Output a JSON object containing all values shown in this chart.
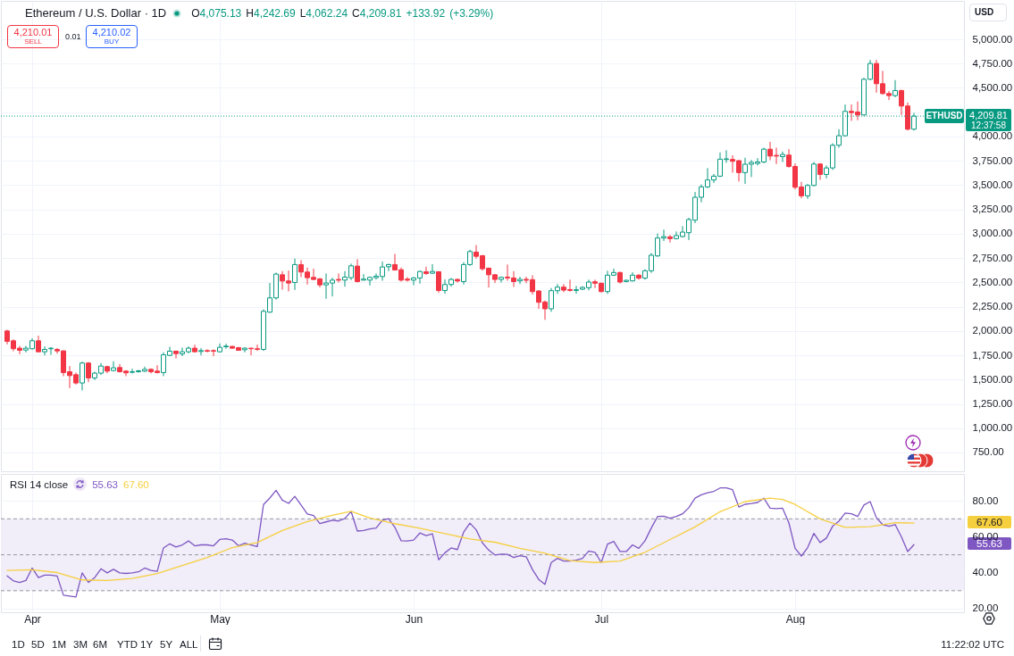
{
  "chart_data": [
    {
      "type": "candlestick",
      "title": "Ethereum / U.S. Dollar · 1D",
      "subtitle": "O4,075.13 H4,242.69 L4,062.24 C4,209.81 +133.92 (+3.29%)",
      "x": [
        "--03-28",
        "--03-29",
        "--03-30",
        "--03-31",
        "--04-01",
        "--04-02",
        "--04-03",
        "--04-04",
        "--04-05",
        "--04-06",
        "--04-07",
        "--04-08",
        "--04-09",
        "--04-10",
        "--04-11",
        "--04-12",
        "--04-13",
        "--04-14",
        "--04-15",
        "--04-16",
        "--04-17",
        "--04-18",
        "--04-19",
        "--04-20",
        "--04-21",
        "--04-22",
        "--04-23",
        "--04-24",
        "--04-25",
        "--04-26",
        "--04-27",
        "--04-28",
        "--04-29",
        "--04-30",
        "--05-01",
        "--05-02",
        "--05-03",
        "--05-04",
        "--05-05",
        "--05-06",
        "--05-07",
        "--05-08",
        "--05-09",
        "--05-10",
        "--05-11",
        "--05-12",
        "--05-13",
        "--05-14",
        "--05-15",
        "--05-16",
        "--05-17",
        "--05-18",
        "--05-19",
        "--05-20",
        "--05-21",
        "--05-22",
        "--05-23",
        "--05-24",
        "--05-25",
        "--05-26",
        "--05-27",
        "--05-28",
        "--05-29",
        "--05-30",
        "--05-31",
        "--06-01",
        "--06-02",
        "--06-03",
        "--06-04",
        "--06-05",
        "--06-06",
        "--06-07",
        "--06-08",
        "--06-09",
        "--06-10",
        "--06-11",
        "--06-12",
        "--06-13",
        "--06-14",
        "--06-15",
        "--06-16",
        "--06-17",
        "--06-18",
        "--06-19",
        "--06-20",
        "--06-21",
        "--06-22",
        "--06-23",
        "--06-24",
        "--06-25",
        "--06-26",
        "--06-27",
        "--06-28",
        "--06-29",
        "--06-30",
        "--07-01",
        "--07-02",
        "--07-03",
        "--07-04",
        "--07-05",
        "--07-06",
        "--07-07",
        "--07-08",
        "--07-09",
        "--07-10",
        "--07-11",
        "--07-12",
        "--07-13",
        "--07-14",
        "--07-15",
        "--07-16",
        "--07-17",
        "--07-18",
        "--07-19",
        "--07-20",
        "--07-21",
        "--07-22",
        "--07-23",
        "--07-24",
        "--07-25",
        "--07-26",
        "--07-27",
        "--07-28",
        "--07-29",
        "--07-30",
        "--07-31",
        "--08-01",
        "--08-02",
        "--08-03",
        "--08-04",
        "--08-05",
        "--08-06",
        "--08-07",
        "--08-08",
        "--08-09",
        "--08-10",
        "--08-11",
        "--08-12",
        "--08-13",
        "--08-14",
        "--08-15",
        "--08-16",
        "--08-17",
        "--08-18",
        "--08-19",
        "--08-20"
      ],
      "ohlc": [
        [
          2000,
          2012,
          1862,
          1893
        ],
        [
          1899,
          1914,
          1792,
          1817
        ],
        [
          1823,
          1847,
          1761,
          1801
        ],
        [
          1804,
          1847,
          1780,
          1823
        ],
        [
          1817,
          1924,
          1810,
          1899
        ],
        [
          1899,
          1951,
          1780,
          1786
        ],
        [
          1786,
          1841,
          1749,
          1810
        ],
        [
          1817,
          1832,
          1755,
          1823
        ],
        [
          1810,
          1823,
          1767,
          1795
        ],
        [
          1795,
          1801,
          1535,
          1572
        ],
        [
          1581,
          1639,
          1412,
          1541
        ],
        [
          1550,
          1572,
          1449,
          1465
        ],
        [
          1465,
          1685,
          1388,
          1670
        ],
        [
          1670,
          1679,
          1474,
          1517
        ],
        [
          1517,
          1581,
          1495,
          1566
        ],
        [
          1566,
          1670,
          1547,
          1639
        ],
        [
          1633,
          1642,
          1566,
          1587
        ],
        [
          1593,
          1688,
          1584,
          1621
        ],
        [
          1624,
          1660,
          1572,
          1581
        ],
        [
          1587,
          1596,
          1535,
          1569
        ],
        [
          1575,
          1611,
          1563,
          1581
        ],
        [
          1581,
          1599,
          1572,
          1590
        ],
        [
          1587,
          1633,
          1578,
          1605
        ],
        [
          1605,
          1615,
          1563,
          1581
        ],
        [
          1587,
          1648,
          1563,
          1572
        ],
        [
          1572,
          1780,
          1535,
          1755
        ],
        [
          1749,
          1838,
          1740,
          1792
        ],
        [
          1792,
          1798,
          1718,
          1767
        ],
        [
          1764,
          1829,
          1740,
          1786
        ],
        [
          1786,
          1841,
          1770,
          1823
        ],
        [
          1823,
          1859,
          1780,
          1786
        ],
        [
          1789,
          1823,
          1749,
          1798
        ],
        [
          1798,
          1810,
          1780,
          1792
        ],
        [
          1798,
          1810,
          1740,
          1792
        ],
        [
          1786,
          1871,
          1780,
          1832
        ],
        [
          1838,
          1868,
          1817,
          1844
        ],
        [
          1841,
          1847,
          1817,
          1823
        ],
        [
          1829,
          1835,
          1798,
          1801
        ],
        [
          1807,
          1832,
          1780,
          1823
        ],
        [
          1823,
          1826,
          1749,
          1817
        ],
        [
          1817,
          1859,
          1795,
          1810
        ],
        [
          1810,
          2223,
          1795,
          2202
        ],
        [
          2193,
          2493,
          2187,
          2340
        ],
        [
          2340,
          2600,
          2322,
          2585
        ],
        [
          2578,
          2615,
          2425,
          2514
        ],
        [
          2514,
          2621,
          2407,
          2493
        ],
        [
          2499,
          2744,
          2422,
          2683
        ],
        [
          2683,
          2728,
          2554,
          2606
        ],
        [
          2606,
          2652,
          2478,
          2548
        ],
        [
          2551,
          2640,
          2523,
          2530
        ],
        [
          2536,
          2545,
          2447,
          2474
        ],
        [
          2474,
          2591,
          2331,
          2493
        ],
        [
          2493,
          2548,
          2355,
          2523
        ],
        [
          2530,
          2591,
          2499,
          2523
        ],
        [
          2523,
          2615,
          2456,
          2554
        ],
        [
          2548,
          2692,
          2523,
          2670
        ],
        [
          2667,
          2738,
          2499,
          2508
        ],
        [
          2523,
          2585,
          2520,
          2533
        ],
        [
          2523,
          2560,
          2468,
          2551
        ],
        [
          2548,
          2591,
          2530,
          2563
        ],
        [
          2560,
          2713,
          2517,
          2658
        ],
        [
          2661,
          2692,
          2615,
          2683
        ],
        [
          2683,
          2793,
          2621,
          2627
        ],
        [
          2630,
          2652,
          2508,
          2523
        ],
        [
          2533,
          2554,
          2508,
          2523
        ],
        [
          2523,
          2554,
          2471,
          2545
        ],
        [
          2545,
          2621,
          2487,
          2612
        ],
        [
          2609,
          2661,
          2578,
          2591
        ],
        [
          2594,
          2686,
          2585,
          2612
        ],
        [
          2609,
          2615,
          2392,
          2416
        ],
        [
          2416,
          2530,
          2383,
          2478
        ],
        [
          2478,
          2545,
          2456,
          2530
        ],
        [
          2530,
          2539,
          2499,
          2514
        ],
        [
          2508,
          2707,
          2478,
          2683
        ],
        [
          2683,
          2835,
          2670,
          2817
        ],
        [
          2811,
          2884,
          2744,
          2768
        ],
        [
          2774,
          2783,
          2621,
          2640
        ],
        [
          2646,
          2652,
          2447,
          2578
        ],
        [
          2578,
          2585,
          2493,
          2530
        ],
        [
          2530,
          2560,
          2499,
          2551
        ],
        [
          2554,
          2683,
          2517,
          2545
        ],
        [
          2545,
          2615,
          2453,
          2508
        ],
        [
          2515,
          2558,
          2482,
          2531
        ],
        [
          2531,
          2558,
          2491,
          2522
        ],
        [
          2528,
          2573,
          2375,
          2405
        ],
        [
          2411,
          2420,
          2228,
          2295
        ],
        [
          2298,
          2313,
          2115,
          2228
        ],
        [
          2228,
          2442,
          2197,
          2414
        ],
        [
          2414,
          2482,
          2381,
          2451
        ],
        [
          2451,
          2482,
          2399,
          2420
        ],
        [
          2426,
          2528,
          2405,
          2417
        ],
        [
          2417,
          2463,
          2384,
          2424
        ],
        [
          2430,
          2460,
          2421,
          2448
        ],
        [
          2445,
          2528,
          2417,
          2503
        ],
        [
          2506,
          2528,
          2442,
          2491
        ],
        [
          2491,
          2497,
          2396,
          2405
        ],
        [
          2405,
          2619,
          2381,
          2574
        ],
        [
          2574,
          2641,
          2565,
          2601
        ],
        [
          2601,
          2610,
          2488,
          2503
        ],
        [
          2509,
          2527,
          2500,
          2521
        ],
        [
          2515,
          2604,
          2509,
          2574
        ],
        [
          2574,
          2583,
          2528,
          2543
        ],
        [
          2543,
          2635,
          2528,
          2619
        ],
        [
          2619,
          2803,
          2598,
          2779
        ],
        [
          2772,
          3002,
          2763,
          2956
        ],
        [
          2956,
          3042,
          2925,
          2971
        ],
        [
          2968,
          2987,
          2910,
          2950
        ],
        [
          2950,
          3023,
          2941,
          2981
        ],
        [
          2971,
          3078,
          2962,
          3017
        ],
        [
          3011,
          3164,
          2935,
          3146
        ],
        [
          3140,
          3430,
          3109,
          3375
        ],
        [
          3375,
          3507,
          3323,
          3482
        ],
        [
          3482,
          3675,
          3470,
          3553
        ],
        [
          3553,
          3614,
          3522,
          3592
        ],
        [
          3592,
          3837,
          3583,
          3767
        ],
        [
          3764,
          3859,
          3730,
          3770
        ],
        [
          3764,
          3807,
          3629,
          3745
        ],
        [
          3752,
          3758,
          3537,
          3629
        ],
        [
          3629,
          3782,
          3513,
          3715
        ],
        [
          3715,
          3758,
          3583,
          3733
        ],
        [
          3723,
          3778,
          3702,
          3738
        ],
        [
          3738,
          3885,
          3726,
          3870
        ],
        [
          3870,
          3946,
          3757,
          3799
        ],
        [
          3806,
          3885,
          3717,
          3799
        ],
        [
          3793,
          3845,
          3738,
          3815
        ],
        [
          3809,
          3870,
          3680,
          3692
        ],
        [
          3692,
          3723,
          3457,
          3478
        ],
        [
          3481,
          3533,
          3365,
          3390
        ],
        [
          3390,
          3512,
          3359,
          3497
        ],
        [
          3497,
          3738,
          3487,
          3717
        ],
        [
          3717,
          3726,
          3555,
          3610
        ],
        [
          3610,
          3702,
          3570,
          3677
        ],
        [
          3677,
          3931,
          3656,
          3910
        ],
        [
          3910,
          4075,
          3885,
          4008
        ],
        [
          4008,
          4329,
          4002,
          4259
        ],
        [
          4259,
          4329,
          4161,
          4246
        ],
        [
          4252,
          4360,
          4167,
          4222
        ],
        [
          4222,
          4604,
          4216,
          4589
        ],
        [
          4589,
          4788,
          4580,
          4751
        ],
        [
          4751,
          4788,
          4451,
          4543
        ],
        [
          4543,
          4675,
          4430,
          4442
        ],
        [
          4442,
          4467,
          4375,
          4421
        ],
        [
          4421,
          4580,
          4405,
          4473
        ],
        [
          4473,
          4482,
          4222,
          4314
        ],
        [
          4314,
          4350,
          4063,
          4075
        ],
        [
          4075.13,
          4242.69,
          4062.24,
          4209.81
        ]
      ],
      "xlim": [
        "--03-27",
        "--08-28"
      ],
      "xticks": [
        {
          "value": "--04-01",
          "label": null
        },
        {
          "value": "--05-01",
          "label": null
        },
        {
          "value": "--06-01",
          "label": null
        },
        {
          "value": "--07-01",
          "label": null
        },
        {
          "value": "--08-01",
          "label": null
        }
      ],
      "ylim": [
        557,
        5395
      ],
      "yticks": [
        {
          "value": 750,
          "label": "750.00"
        },
        {
          "value": 1000,
          "label": "1,000.00"
        },
        {
          "value": 1250,
          "label": "1,250.00"
        },
        {
          "value": 1500,
          "label": "1,500.00"
        },
        {
          "value": 1750,
          "label": "1,750.00"
        },
        {
          "value": 2000,
          "label": "2,000.00"
        },
        {
          "value": 2250,
          "label": "2,250.00"
        },
        {
          "value": 2500,
          "label": "2,500.00"
        },
        {
          "value": 2750,
          "label": "2,750.00"
        },
        {
          "value": 3000,
          "label": "3,000.00"
        },
        {
          "value": 3250,
          "label": "3,250.00"
        },
        {
          "value": 3500,
          "label": "3,500.00"
        },
        {
          "value": 3750,
          "label": "3,750.00"
        },
        {
          "value": 4000,
          "label": "4,000.00"
        },
        {
          "value": 4250,
          "label": null
        },
        {
          "value": 4500,
          "label": "4,500.00"
        },
        {
          "value": 4750,
          "label": "4,750.00"
        },
        {
          "value": 5000,
          "label": "5,000.00"
        }
      ],
      "grid": true,
      "tick_labels": "y",
      "ref_lines": [
        {
          "axis": "y",
          "value": 4209.81,
          "label": "ETHUSD",
          "color": "#089981",
          "line_style": "dotted"
        }
      ],
      "annotations": [
        "4,210.01",
        "SELL",
        "0.01",
        "4,210.02",
        "BUY",
        "USD",
        "4,209.81",
        "12:37:58"
      ]
    },
    {
      "type": "line",
      "title": "RSI 14 close",
      "x": [
        "--03-28",
        "--03-29",
        "--03-30",
        "--03-31",
        "--04-01",
        "--04-02",
        "--04-03",
        "--04-04",
        "--04-05",
        "--04-06",
        "--04-07",
        "--04-08",
        "--04-09",
        "--04-10",
        "--04-11",
        "--04-12",
        "--04-13",
        "--04-14",
        "--04-15",
        "--04-16",
        "--04-17",
        "--04-18",
        "--04-19",
        "--04-20",
        "--04-21",
        "--04-22",
        "--04-23",
        "--04-24",
        "--04-25",
        "--04-26",
        "--04-27",
        "--04-28",
        "--04-29",
        "--04-30",
        "--05-01",
        "--05-02",
        "--05-03",
        "--05-04",
        "--05-05",
        "--05-06",
        "--05-07",
        "--05-08",
        "--05-09",
        "--05-10",
        "--05-11",
        "--05-12",
        "--05-13",
        "--05-14",
        "--05-15",
        "--05-16",
        "--05-17",
        "--05-18",
        "--05-19",
        "--05-20",
        "--05-21",
        "--05-22",
        "--05-23",
        "--05-24",
        "--05-25",
        "--05-26",
        "--05-27",
        "--05-28",
        "--05-29",
        "--05-30",
        "--05-31",
        "--06-01",
        "--06-02",
        "--06-03",
        "--06-04",
        "--06-05",
        "--06-06",
        "--06-07",
        "--06-08",
        "--06-09",
        "--06-10",
        "--06-11",
        "--06-12",
        "--06-13",
        "--06-14",
        "--06-15",
        "--06-16",
        "--06-17",
        "--06-18",
        "--06-19",
        "--06-20",
        "--06-21",
        "--06-22",
        "--06-23",
        "--06-24",
        "--06-25",
        "--06-26",
        "--06-27",
        "--06-28",
        "--06-29",
        "--06-30",
        "--07-01",
        "--07-02",
        "--07-03",
        "--07-04",
        "--07-05",
        "--07-06",
        "--07-07",
        "--07-08",
        "--07-09",
        "--07-10",
        "--07-11",
        "--07-12",
        "--07-13",
        "--07-14",
        "--07-15",
        "--07-16",
        "--07-17",
        "--07-18",
        "--07-19",
        "--07-20",
        "--07-21",
        "--07-22",
        "--07-23",
        "--07-24",
        "--07-25",
        "--07-26",
        "--07-27",
        "--07-28",
        "--07-29",
        "--07-30",
        "--07-31",
        "--08-01",
        "--08-02",
        "--08-03",
        "--08-04",
        "--08-05",
        "--08-06",
        "--08-07",
        "--08-08",
        "--08-09",
        "--08-10",
        "--08-11",
        "--08-12",
        "--08-13",
        "--08-14",
        "--08-15",
        "--08-16",
        "--08-17",
        "--08-18",
        "--08-19",
        "--08-20"
      ],
      "series": [
        {
          "color": "#7e57c2",
          "values": [
            38.3,
            35.5,
            34.6,
            35.7,
            42.6,
            37.3,
            38.7,
            38.7,
            38.2,
            27.5,
            27.0,
            26.5,
            39.9,
            34.6,
            37.3,
            42.2,
            39.9,
            41.9,
            39.9,
            39.6,
            39.9,
            40.5,
            42.6,
            41.3,
            40.8,
            53.8,
            56.1,
            54.3,
            55.5,
            57.7,
            55.0,
            55.5,
            55.5,
            55.0,
            58.5,
            58.9,
            58.2,
            55.0,
            56.4,
            55.5,
            54.6,
            78.0,
            81.6,
            85.9,
            80.4,
            78.6,
            82.5,
            77.7,
            72.7,
            71.8,
            67.4,
            68.3,
            69.2,
            68.8,
            70.2,
            74.1,
            63.2,
            63.5,
            64.4,
            64.9,
            69.2,
            70.1,
            65.3,
            57.8,
            57.7,
            58.2,
            62.1,
            60.7,
            61.7,
            47.2,
            51.1,
            53.8,
            52.9,
            62.6,
            67.6,
            63.9,
            56.6,
            52.6,
            49.9,
            50.4,
            50.2,
            48.5,
            49.5,
            48.9,
            41.8,
            36.3,
            33.5,
            45.7,
            48.0,
            46.5,
            46.5,
            47.0,
            48.0,
            52.1,
            51.4,
            45.7,
            55.9,
            57.4,
            51.8,
            51.8,
            55.5,
            53.6,
            57.8,
            64.9,
            71.3,
            71.5,
            70.4,
            71.3,
            72.8,
            76.2,
            81.5,
            83.4,
            84.5,
            85.3,
            87.2,
            87.2,
            86.2,
            76.6,
            78.1,
            78.5,
            79.1,
            81.5,
            75.9,
            75.7,
            75.9,
            67.8,
            53.6,
            49.3,
            54.0,
            61.9,
            56.8,
            59.3,
            65.9,
            68.7,
            73.2,
            72.8,
            71.3,
            77.7,
            79.6,
            70.6,
            66.8,
            65.9,
            66.8,
            60.0,
            51.8,
            55.63
          ]
        },
        {
          "color": "#f6cf3e",
          "x": [
            "--03-28",
            "--04-01",
            "--04-05",
            "--04-09",
            "--04-13",
            "--04-17",
            "--04-21",
            "--04-25",
            "--04-29",
            "--05-03",
            "--05-07",
            "--05-11",
            "--05-15",
            "--05-19",
            "--05-22",
            "--05-25",
            "--05-29",
            "--06-02",
            "--06-06",
            "--06-10",
            "--06-14",
            "--06-18",
            "--06-22",
            "--06-26",
            "--06-30",
            "--07-04",
            "--07-08",
            "--07-12",
            "--07-16",
            "--07-20",
            "--07-24",
            "--07-28",
            "--07-30",
            "--08-01",
            "--08-05",
            "--08-09",
            "--08-13",
            "--08-17",
            "--08-20"
          ],
          "values": [
            41.3,
            41.7,
            40.1,
            36.0,
            35.7,
            36.8,
            39.5,
            44.0,
            48.5,
            54.0,
            56.8,
            63.5,
            68.5,
            72.0,
            74.2,
            70.5,
            67.3,
            64.8,
            61.8,
            58.8,
            57.0,
            53.6,
            50.8,
            46.8,
            45.7,
            46.5,
            51.4,
            58.5,
            65.5,
            74.0,
            79.6,
            81.5,
            80.8,
            78.0,
            70.0,
            65.3,
            65.6,
            67.9,
            67.6
          ]
        }
      ],
      "xlim": [
        "--03-27",
        "--08-28"
      ],
      "xticks": [
        {
          "value": "--04-01",
          "label": "Apr"
        },
        {
          "value": "--05-01",
          "label": "May"
        },
        {
          "value": "--06-01",
          "label": "Jun"
        },
        {
          "value": "--07-01",
          "label": "Jul"
        },
        {
          "value": "--08-01",
          "label": "Aug"
        }
      ],
      "ylim": [
        18,
        95
      ],
      "yticks": [
        {
          "value": 20,
          "label": "20.00"
        },
        {
          "value": 40,
          "label": "40.00"
        },
        {
          "value": 60,
          "label": "60.00"
        },
        {
          "value": 80,
          "label": "80.00"
        }
      ],
      "grid": true,
      "bands": [
        {
          "axis": "y",
          "from": 30,
          "to": 70,
          "color": "#f1edf9"
        }
      ],
      "ref_lines": [
        {
          "axis": "y",
          "value": 70,
          "color": "#9598a1",
          "line_style": "dashed"
        },
        {
          "axis": "y",
          "value": 50,
          "color": "#9598a1",
          "line_style": "dashed"
        },
        {
          "axis": "y",
          "value": 30,
          "color": "#9598a1",
          "line_style": "dashed"
        }
      ],
      "annotations": [
        "55.63",
        "67.60",
        "1D",
        "5D",
        "1M",
        "3M",
        "6M",
        "YTD",
        "1Y",
        "5Y",
        "ALL",
        "11:22:02 UTC"
      ]
    }
  ]
}
